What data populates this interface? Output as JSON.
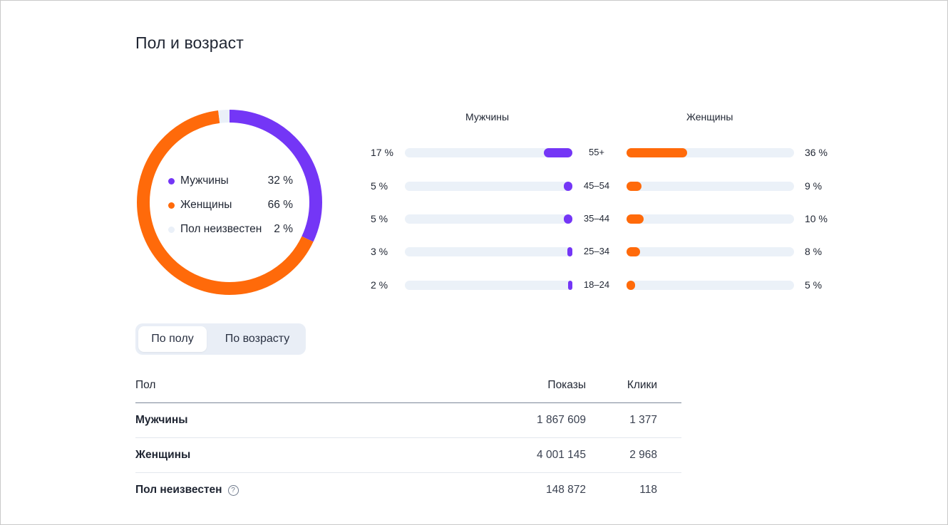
{
  "title": "Пол и возраст",
  "colors": {
    "male": "#7436f6",
    "female": "#ff6a0a",
    "unknown": "#eaf0f8",
    "track": "#ebf1f8"
  },
  "chart_data": [
    {
      "type": "pie",
      "variant": "donut",
      "categories": [
        "Мужчины",
        "Женщины",
        "Пол неизвестен"
      ],
      "values": [
        32,
        66,
        2
      ],
      "value_labels": [
        "32 %",
        "66 %",
        "2 %"
      ],
      "colors": [
        "#7436f6",
        "#ff6a0a",
        "#eaf0f8"
      ]
    },
    {
      "type": "bar",
      "orientation": "horizontal",
      "columns": [
        "Мужчины",
        "Женщины"
      ],
      "categories": [
        "55+",
        "45–54",
        "35–44",
        "25–34",
        "18–24"
      ],
      "series": [
        {
          "name": "Мужчины",
          "values": [
            17,
            5,
            5,
            3,
            2
          ],
          "labels": [
            "17 %",
            "5 %",
            "5 %",
            "3 %",
            "2 %"
          ],
          "color": "#7436f6"
        },
        {
          "name": "Женщины",
          "values": [
            36,
            9,
            10,
            8,
            5
          ],
          "labels": [
            "36 %",
            "9 %",
            "10 %",
            "8 %",
            "5 %"
          ],
          "color": "#ff6a0a"
        }
      ],
      "xlim": [
        0,
        100
      ]
    }
  ],
  "toggle": {
    "options": [
      "По полу",
      "По возрасту"
    ],
    "selected": "По полу"
  },
  "table": {
    "columns": [
      "Пол",
      "Показы",
      "Клики"
    ],
    "rows": [
      {
        "name": "Мужчины",
        "shows": "1 867 609",
        "clicks": "1 377",
        "help": false
      },
      {
        "name": "Женщины",
        "shows": "4 001 145",
        "clicks": "2 968",
        "help": false
      },
      {
        "name": "Пол неизвестен",
        "shows": "148 872",
        "clicks": "118",
        "help": true
      }
    ]
  },
  "icons": {
    "help": "question-circle-icon",
    "help_glyph": "?"
  }
}
